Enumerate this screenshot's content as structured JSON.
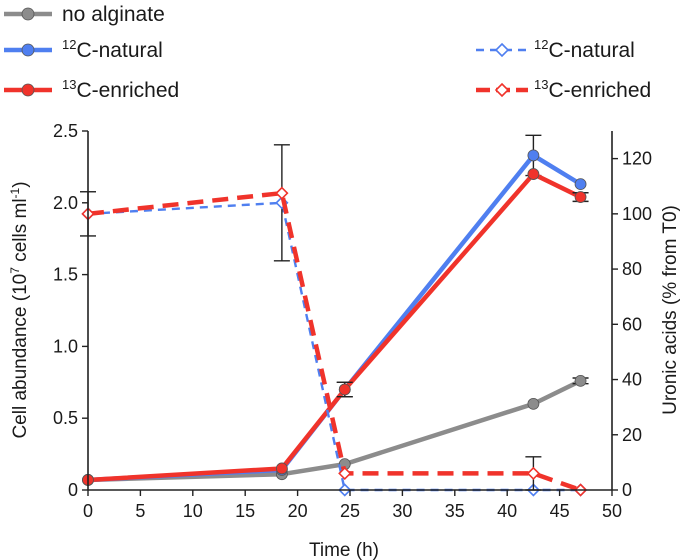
{
  "chart_data": {
    "type": "line",
    "title": "",
    "xlabel": "Time (h)",
    "ylabel_left": {
      "main": "Cell abundance (10",
      "sup1": "7",
      "mid": " cells ml",
      "sup2": "-1",
      "end": ")"
    },
    "ylabel_right": "Uronic acids (% from T0)",
    "xlim": [
      0,
      50
    ],
    "ylim_left": [
      0,
      2.5
    ],
    "ylim_right": [
      0,
      130
    ],
    "xticks": [
      "0",
      "5",
      "10",
      "15",
      "20",
      "25",
      "30",
      "35",
      "40",
      "45",
      "50"
    ],
    "yticks_left": [
      "0",
      "0.5",
      "1.0",
      "1.5",
      "2.0",
      "2.5"
    ],
    "yticks_right": [
      "0",
      "20",
      "40",
      "60",
      "80",
      "100",
      "120"
    ],
    "colors": {
      "gray": "#8c8c8c",
      "blue": "#4f7ff0",
      "red": "#f0332b"
    },
    "legend": [
      {
        "name": "no-alginate",
        "label": "no alginate",
        "sup": "",
        "color": "#8c8c8c",
        "style": "solid-dot"
      },
      {
        "name": "c12-natural-cells",
        "label": "C-natural",
        "sup": "12",
        "color": "#4f7ff0",
        "style": "solid-dot"
      },
      {
        "name": "c13-enriched-cells",
        "label": "C-enriched",
        "sup": "13",
        "color": "#f0332b",
        "style": "solid-dot"
      },
      {
        "name": "c12-natural-uronic",
        "label": "C-natural",
        "sup": "12",
        "color": "#4f7ff0",
        "style": "dashed-diamond"
      },
      {
        "name": "c13-enriched-uronic",
        "label": "C-enriched",
        "sup": "13",
        "color": "#f0332b",
        "style": "dashed-diamond"
      }
    ],
    "series": [
      {
        "name": "no alginate",
        "axis": "left",
        "color": "#8c8c8c",
        "style": "solid",
        "x": [
          0,
          18.5,
          24.5,
          42.5,
          47
        ],
        "y": [
          0.07,
          0.11,
          0.18,
          0.6,
          0.76
        ],
        "err": [
          0,
          0,
          0,
          0,
          0.02
        ]
      },
      {
        "name": "12C-natural cells",
        "axis": "left",
        "color": "#4f7ff0",
        "style": "solid",
        "x": [
          0,
          18.5,
          24.5,
          42.5,
          47
        ],
        "y": [
          0.07,
          0.14,
          0.7,
          2.33,
          2.13
        ],
        "err": [
          0,
          0,
          0.05,
          0.14,
          0
        ]
      },
      {
        "name": "13C-enriched cells",
        "axis": "left",
        "color": "#f0332b",
        "style": "solid",
        "x": [
          0,
          18.5,
          24.5,
          42.5,
          47
        ],
        "y": [
          0.07,
          0.15,
          0.7,
          2.2,
          2.04
        ],
        "err": [
          0,
          0,
          0.05,
          0,
          0.03
        ]
      },
      {
        "name": "12C-natural uronic acids",
        "axis": "right",
        "color": "#4f7ff0",
        "style": "dashed",
        "x": [
          0,
          18.5,
          24.5,
          42.5,
          47
        ],
        "y": [
          100,
          104,
          0,
          0,
          0
        ],
        "err": [
          8,
          21,
          0,
          0,
          0
        ]
      },
      {
        "name": "13C-enriched uronic acids",
        "axis": "right",
        "color": "#f0332b",
        "style": "dashed",
        "x": [
          0,
          18.5,
          24.5,
          42.5,
          47
        ],
        "y": [
          100,
          107.5,
          6,
          6,
          0
        ],
        "err": [
          0,
          0,
          0,
          6,
          0
        ]
      }
    ]
  }
}
